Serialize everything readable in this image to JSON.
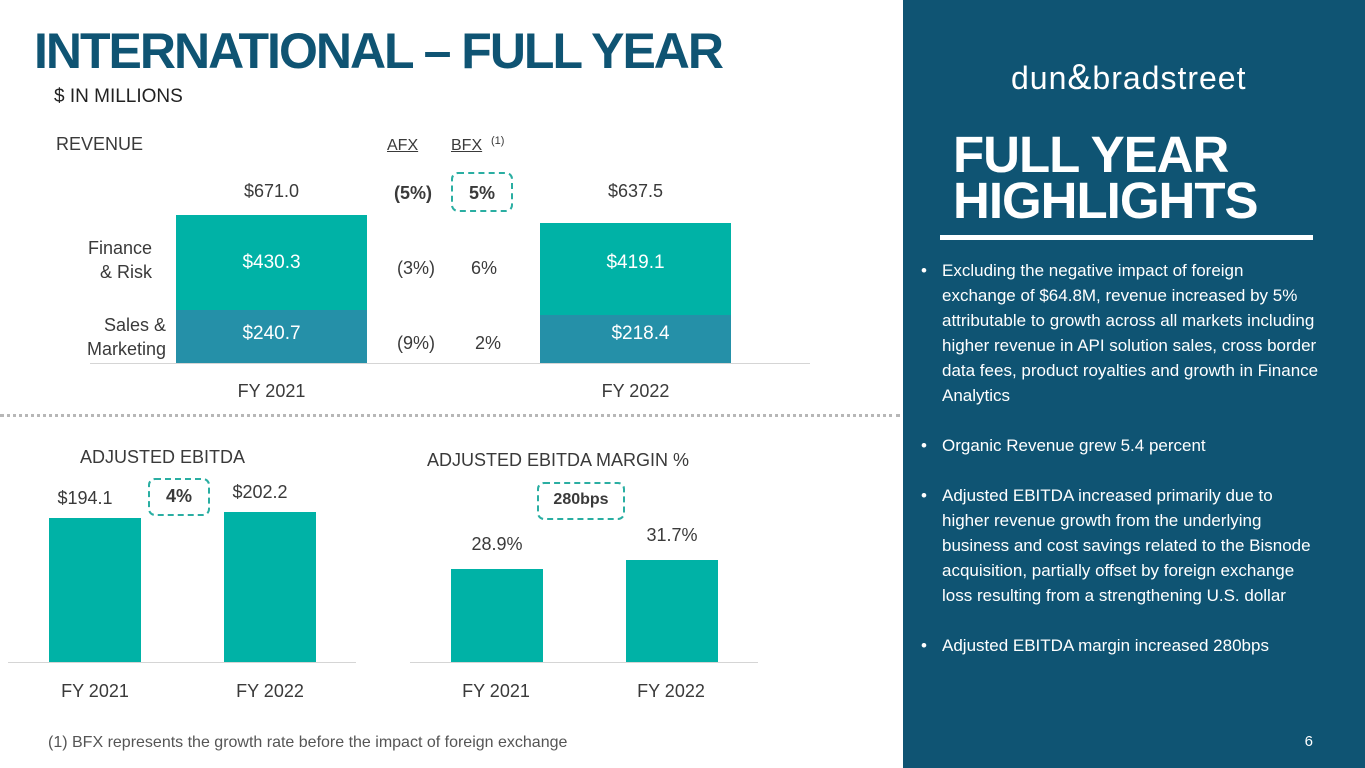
{
  "title": "INTERNATIONAL – FULL YEAR",
  "subtitle": "$ IN MILLIONS",
  "revenue_chart": {
    "label": "REVENUE",
    "afx_header": "AFX",
    "bfx_header": "BFX",
    "bfx_note": "(1)",
    "row_labels": {
      "finance_line1": "Finance",
      "finance_line2": "& Risk",
      "sales_line1": "Sales &",
      "sales_line2": "Marketing"
    },
    "total_growth": {
      "afx": "(5%)",
      "bfx": "5%"
    },
    "finance_growth": {
      "afx": "(3%)",
      "bfx": "6%"
    },
    "sales_growth": {
      "afx": "(9%)",
      "bfx": "2%"
    }
  },
  "ebitda_chart": {
    "label": "ADJUSTED EBITDA",
    "growth": "4%"
  },
  "margin_chart": {
    "label": "ADJUSTED EBITDA MARGIN %",
    "growth": "280bps"
  },
  "chart_data": [
    {
      "type": "bar",
      "stacked": true,
      "title": "REVENUE",
      "categories": [
        "FY 2021",
        "FY 2022"
      ],
      "series": [
        {
          "name": "Sales & Marketing",
          "values": [
            240.7,
            218.4
          ],
          "labels": [
            "$240.7",
            "$218.4"
          ],
          "color": "#2590a8"
        },
        {
          "name": "Finance & Risk",
          "values": [
            430.3,
            419.1
          ],
          "labels": [
            "$430.3",
            "$419.1"
          ],
          "color": "#00b2a6"
        }
      ],
      "totals": [
        671.0,
        637.5
      ],
      "total_labels": [
        "$671.0",
        "$637.5"
      ]
    },
    {
      "type": "bar",
      "title": "ADJUSTED EBITDA",
      "categories": [
        "FY 2021",
        "FY 2022"
      ],
      "values": [
        194.1,
        202.2
      ],
      "labels": [
        "$194.1",
        "$202.2"
      ],
      "color": "#00b2a6"
    },
    {
      "type": "bar",
      "title": "ADJUSTED EBITDA MARGIN %",
      "categories": [
        "FY 2021",
        "FY 2022"
      ],
      "values": [
        28.9,
        31.7
      ],
      "labels": [
        "28.9%",
        "31.7%"
      ],
      "color": "#00b2a6"
    }
  ],
  "footnote": "(1)  BFX represents the growth rate before the impact of foreign exchange",
  "sidebar": {
    "logo_left": "dun",
    "logo_amp": "&",
    "logo_right": "bradstreet",
    "title_line1": "FULL YEAR",
    "title_line2": "HIGHLIGHTS",
    "bullets": [
      "Excluding the negative impact of foreign exchange of $64.8M, revenue increased by 5% attributable to growth across all markets including higher revenue in API solution sales, cross border data fees, product royalties and growth in Finance Analytics",
      "Organic Revenue grew 5.4 percent",
      "Adjusted EBITDA increased primarily due to higher revenue growth from the underlying business and cost savings related to the Bisnode acquisition, partially offset by foreign exchange loss resulting from a strengthening U.S. dollar",
      "Adjusted EBITDA margin increased 280bps"
    ],
    "page_number": "6"
  },
  "colors": {
    "navy": "#0f5473",
    "teal": "#00b2a6",
    "steel_blue": "#2590a8",
    "dash_teal": "#2aaea2"
  }
}
